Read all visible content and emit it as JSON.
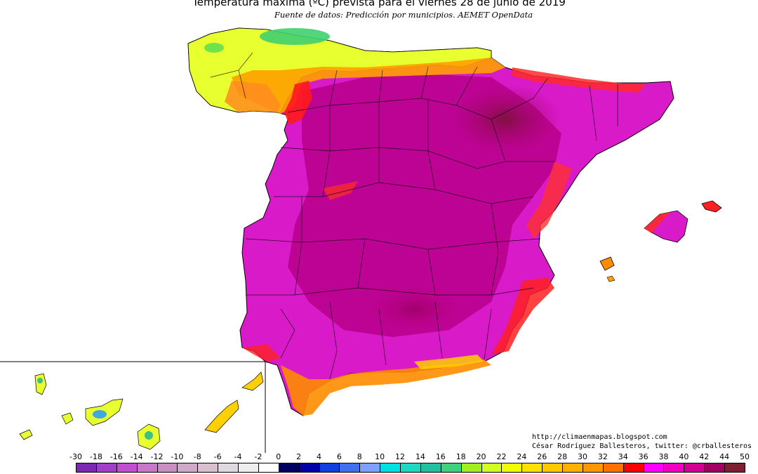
{
  "title": "Temperatura máxima (ºC) prevista para el viernes 28 de junio de 2019",
  "subtitle": "Fuente de datos: Predicción por municipios. AEMET OpenData",
  "credits": {
    "url": "http://climaenmapas.blogspot.com",
    "author": "César Rodríguez Ballesteros, twitter: @crballesteros"
  },
  "legend": {
    "unit": "ºC",
    "ticks": [
      "-30",
      "-18",
      "-16",
      "-14",
      "-12",
      "-10",
      "-8",
      "-6",
      "-4",
      "-2",
      "0",
      "2",
      "4",
      "6",
      "8",
      "10",
      "12",
      "14",
      "16",
      "18",
      "20",
      "22",
      "24",
      "26",
      "28",
      "30",
      "32",
      "34",
      "36",
      "38",
      "40",
      "42",
      "44",
      "50"
    ],
    "colors": [
      "#7b28b4",
      "#a040c8",
      "#c050d0",
      "#c878c8",
      "#c890c0",
      "#d0a8c8",
      "#d8c0d0",
      "#e0d8e0",
      "#eeeeee",
      "#ffffff",
      "#000060",
      "#0000a8",
      "#1040e0",
      "#4070f0",
      "#80a0ff",
      "#00e0e0",
      "#20d8c0",
      "#20c0a0",
      "#40d080",
      "#a0f020",
      "#d0ff20",
      "#f0ff00",
      "#ffe000",
      "#ffc800",
      "#ffb000",
      "#ff9800",
      "#ff7000",
      "#ff0000",
      "#ff00ff",
      "#f000c0",
      "#d00090",
      "#a00060",
      "#7a2030"
    ]
  },
  "map_colors": {
    "hot_interior": "#b8008a",
    "magenta": "#e020d0",
    "red": "#ff2020",
    "orange": "#ff8c00",
    "yellow": "#e8ff30",
    "green": "#30d070",
    "dark_core": "#8a1050",
    "border": "#000000"
  }
}
